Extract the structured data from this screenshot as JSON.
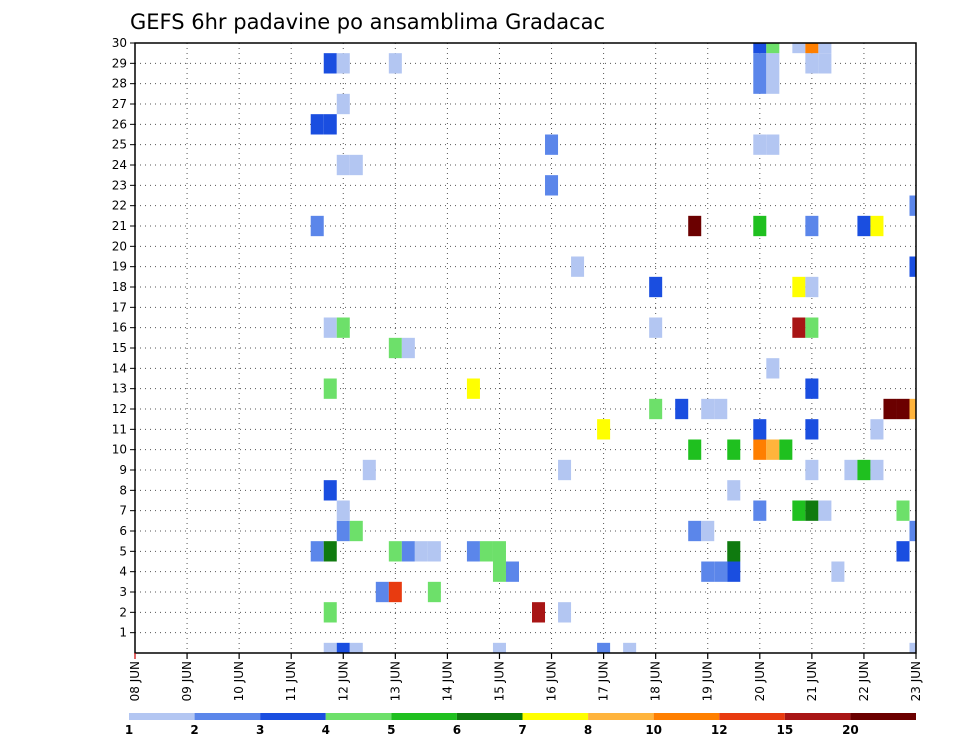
{
  "chart_data": {
    "type": "heatmap",
    "title": "GEFS 6hr padavine po ansamblima Gradacac",
    "xlabel": "",
    "ylabel": "",
    "x_ticks": [
      "08 JUN",
      "09 JUN",
      "10 JUN",
      "11 JUN",
      "12 JUN",
      "13 JUN",
      "14 JUN",
      "15 JUN",
      "16 JUN",
      "17 JUN",
      "18 JUN",
      "19 JUN",
      "20 JUN",
      "21 JUN",
      "22 JUN",
      "23 JUN"
    ],
    "y_ticks": [
      "1",
      "2",
      "3",
      "4",
      "5",
      "6",
      "7",
      "8",
      "9",
      "10",
      "11",
      "12",
      "13",
      "14",
      "15",
      "16",
      "17",
      "18",
      "19",
      "20",
      "21",
      "22",
      "23",
      "24",
      "25",
      "26",
      "27",
      "28",
      "29",
      "30"
    ],
    "xlim_days": [
      0,
      15
    ],
    "ylim": [
      0,
      30
    ],
    "grid": true,
    "colorbar": {
      "labels": [
        "1",
        "2",
        "3",
        "4",
        "5",
        "6",
        "7",
        "8",
        "10",
        "12",
        "15",
        "20"
      ],
      "colors": [
        "#b3c6f2",
        "#5b86ea",
        "#1a4ee0",
        "#6de06a",
        "#1fc01f",
        "#0f7a0f",
        "#ffff00",
        "#ffb43c",
        "#ff7f00",
        "#e83b10",
        "#a81515",
        "#6b0000"
      ]
    },
    "cells": [
      {
        "day": 3.75,
        "member": 0,
        "level": 1
      },
      {
        "day": 4.0,
        "member": 0,
        "level": 3
      },
      {
        "day": 4.25,
        "member": 0,
        "level": 1
      },
      {
        "day": 7.0,
        "member": 0,
        "level": 1
      },
      {
        "day": 9.0,
        "member": 0,
        "level": 2
      },
      {
        "day": 9.5,
        "member": 0,
        "level": 1
      },
      {
        "day": 15.0,
        "member": 0,
        "level": 1
      },
      {
        "day": 3.75,
        "member": 2,
        "level": 4
      },
      {
        "day": 7.75,
        "member": 2,
        "level": 11
      },
      {
        "day": 8.25,
        "member": 2,
        "level": 1
      },
      {
        "day": 4.75,
        "member": 3,
        "level": 2
      },
      {
        "day": 5.0,
        "member": 3,
        "level": 10
      },
      {
        "day": 5.75,
        "member": 3,
        "level": 4
      },
      {
        "day": 7.0,
        "member": 4,
        "level": 4
      },
      {
        "day": 7.25,
        "member": 4,
        "level": 2
      },
      {
        "day": 11.0,
        "member": 4,
        "level": 2
      },
      {
        "day": 11.25,
        "member": 4,
        "level": 2
      },
      {
        "day": 11.5,
        "member": 4,
        "level": 3
      },
      {
        "day": 13.5,
        "member": 4,
        "level": 1
      },
      {
        "day": 3.5,
        "member": 5,
        "level": 2
      },
      {
        "day": 3.75,
        "member": 5,
        "level": 6
      },
      {
        "day": 5.0,
        "member": 5,
        "level": 4
      },
      {
        "day": 5.25,
        "member": 5,
        "level": 2
      },
      {
        "day": 5.5,
        "member": 5,
        "level": 1
      },
      {
        "day": 5.75,
        "member": 5,
        "level": 1
      },
      {
        "day": 6.5,
        "member": 5,
        "level": 2
      },
      {
        "day": 6.75,
        "member": 5,
        "level": 4
      },
      {
        "day": 7.0,
        "member": 5,
        "level": 4
      },
      {
        "day": 11.5,
        "member": 5,
        "level": 6
      },
      {
        "day": 14.75,
        "member": 5,
        "level": 3
      },
      {
        "day": 4.0,
        "member": 6,
        "level": 2
      },
      {
        "day": 4.25,
        "member": 6,
        "level": 4
      },
      {
        "day": 10.75,
        "member": 6,
        "level": 2
      },
      {
        "day": 11.0,
        "member": 6,
        "level": 1
      },
      {
        "day": 15.0,
        "member": 6,
        "level": 2
      },
      {
        "day": 4.0,
        "member": 7,
        "level": 1
      },
      {
        "day": 12.0,
        "member": 7,
        "level": 2
      },
      {
        "day": 12.75,
        "member": 7,
        "level": 5
      },
      {
        "day": 13.0,
        "member": 7,
        "level": 6
      },
      {
        "day": 13.25,
        "member": 7,
        "level": 1
      },
      {
        "day": 14.75,
        "member": 7,
        "level": 4
      },
      {
        "day": 3.75,
        "member": 8,
        "level": 3
      },
      {
        "day": 11.5,
        "member": 8,
        "level": 1
      },
      {
        "day": 4.5,
        "member": 9,
        "level": 1
      },
      {
        "day": 8.25,
        "member": 9,
        "level": 1
      },
      {
        "day": 13.0,
        "member": 9,
        "level": 1
      },
      {
        "day": 13.75,
        "member": 9,
        "level": 1
      },
      {
        "day": 14.0,
        "member": 9,
        "level": 5
      },
      {
        "day": 14.25,
        "member": 9,
        "level": 1
      },
      {
        "day": 10.75,
        "member": 10,
        "level": 5
      },
      {
        "day": 11.5,
        "member": 10,
        "level": 5
      },
      {
        "day": 12.0,
        "member": 10,
        "level": 9
      },
      {
        "day": 12.25,
        "member": 10,
        "level": 8
      },
      {
        "day": 12.5,
        "member": 10,
        "level": 5
      },
      {
        "day": 9.0,
        "member": 11,
        "level": 7
      },
      {
        "day": 12.0,
        "member": 11,
        "level": 3
      },
      {
        "day": 13.0,
        "member": 11,
        "level": 3
      },
      {
        "day": 14.25,
        "member": 11,
        "level": 1
      },
      {
        "day": 10.0,
        "member": 12,
        "level": 4
      },
      {
        "day": 10.5,
        "member": 12,
        "level": 3
      },
      {
        "day": 11.0,
        "member": 12,
        "level": 1
      },
      {
        "day": 11.25,
        "member": 12,
        "level": 1
      },
      {
        "day": 14.5,
        "member": 12,
        "level": 12
      },
      {
        "day": 14.75,
        "member": 12,
        "level": 12
      },
      {
        "day": 15.0,
        "member": 12,
        "level": 8
      },
      {
        "day": 3.75,
        "member": 13,
        "level": 4
      },
      {
        "day": 6.5,
        "member": 13,
        "level": 7
      },
      {
        "day": 13.0,
        "member": 13,
        "level": 3
      },
      {
        "day": 12.25,
        "member": 14,
        "level": 1
      },
      {
        "day": 5.0,
        "member": 15,
        "level": 4
      },
      {
        "day": 5.25,
        "member": 15,
        "level": 1
      },
      {
        "day": 3.75,
        "member": 16,
        "level": 1
      },
      {
        "day": 4.0,
        "member": 16,
        "level": 4
      },
      {
        "day": 10.0,
        "member": 16,
        "level": 1
      },
      {
        "day": 12.75,
        "member": 16,
        "level": 11
      },
      {
        "day": 13.0,
        "member": 16,
        "level": 4
      },
      {
        "day": 10.0,
        "member": 18,
        "level": 3
      },
      {
        "day": 12.75,
        "member": 18,
        "level": 7
      },
      {
        "day": 13.0,
        "member": 18,
        "level": 1
      },
      {
        "day": 8.5,
        "member": 19,
        "level": 1
      },
      {
        "day": 15.0,
        "member": 19,
        "level": 3
      },
      {
        "day": 3.5,
        "member": 21,
        "level": 2
      },
      {
        "day": 10.75,
        "member": 21,
        "level": 12
      },
      {
        "day": 12.0,
        "member": 21,
        "level": 5
      },
      {
        "day": 13.0,
        "member": 21,
        "level": 2
      },
      {
        "day": 14.0,
        "member": 21,
        "level": 3
      },
      {
        "day": 14.25,
        "member": 21,
        "level": 7
      },
      {
        "day": 15.0,
        "member": 22,
        "level": 2
      },
      {
        "day": 8.0,
        "member": 23,
        "level": 2
      },
      {
        "day": 4.0,
        "member": 24,
        "level": 1
      },
      {
        "day": 4.25,
        "member": 24,
        "level": 1
      },
      {
        "day": 8.0,
        "member": 25,
        "level": 2
      },
      {
        "day": 12.0,
        "member": 25,
        "level": 1
      },
      {
        "day": 12.25,
        "member": 25,
        "level": 1
      },
      {
        "day": 3.5,
        "member": 26,
        "level": 3
      },
      {
        "day": 3.75,
        "member": 26,
        "level": 3
      },
      {
        "day": 4.0,
        "member": 27,
        "level": 1
      },
      {
        "day": 12.0,
        "member": 28,
        "level": 2
      },
      {
        "day": 12.25,
        "member": 28,
        "level": 1
      },
      {
        "day": 3.75,
        "member": 29,
        "level": 3
      },
      {
        "day": 4.0,
        "member": 29,
        "level": 1
      },
      {
        "day": 5.0,
        "member": 29,
        "level": 1
      },
      {
        "day": 12.0,
        "member": 29,
        "level": 2
      },
      {
        "day": 12.25,
        "member": 29,
        "level": 1
      },
      {
        "day": 13.0,
        "member": 29,
        "level": 1
      },
      {
        "day": 13.25,
        "member": 29,
        "level": 1
      },
      {
        "day": 12.0,
        "member": 30,
        "level": 3
      },
      {
        "day": 12.25,
        "member": 30,
        "level": 4
      },
      {
        "day": 12.75,
        "member": 30,
        "level": 1
      },
      {
        "day": 13.0,
        "member": 30,
        "level": 9
      },
      {
        "day": 13.25,
        "member": 30,
        "level": 1
      }
    ]
  }
}
